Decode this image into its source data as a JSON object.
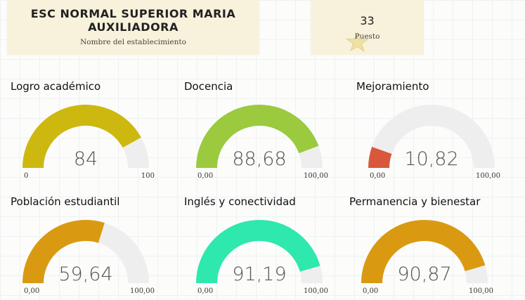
{
  "school": {
    "name": "ESC NORMAL SUPERIOR MARIA AUXILIADORA",
    "subtitle": "Nombre del establecimiento"
  },
  "rank": {
    "value": "33",
    "label": "Puesto",
    "icon": "star-icon"
  },
  "gauges": [
    {
      "title": "Logro académico",
      "value": 84,
      "value_label": "84",
      "min_label": "0",
      "max_label": "100",
      "min": 0,
      "max": 100,
      "color": "#cdb80f"
    },
    {
      "title": "Docencia",
      "value": 88.68,
      "value_label": "88,68",
      "min_label": "0,00",
      "max_label": "100,00",
      "min": 0,
      "max": 100,
      "color": "#9bca3e"
    },
    {
      "title": "Mejoramiento",
      "value": 10.82,
      "value_label": "10,82",
      "min_label": "0,00",
      "max_label": "100,00",
      "min": 0,
      "max": 100,
      "color": "#d9583b"
    },
    {
      "title": "Población estudiantil",
      "value": 59.64,
      "value_label": "59,64",
      "min_label": "0,00",
      "max_label": "100,00",
      "min": 0,
      "max": 100,
      "color": "#d99a12"
    },
    {
      "title": "Inglés y conectividad",
      "value": 91.19,
      "value_label": "91,19",
      "min_label": "0,00",
      "max_label": "100,00",
      "min": 0,
      "max": 100,
      "color": "#2ee8ad"
    },
    {
      "title": "Permanencia y bienestar",
      "value": 90.87,
      "value_label": "90,87",
      "min_label": "0,00",
      "max_label": "100,00",
      "min": 0,
      "max": 100,
      "color": "#d99a12"
    }
  ],
  "colors": {
    "track": "#efeeee"
  }
}
